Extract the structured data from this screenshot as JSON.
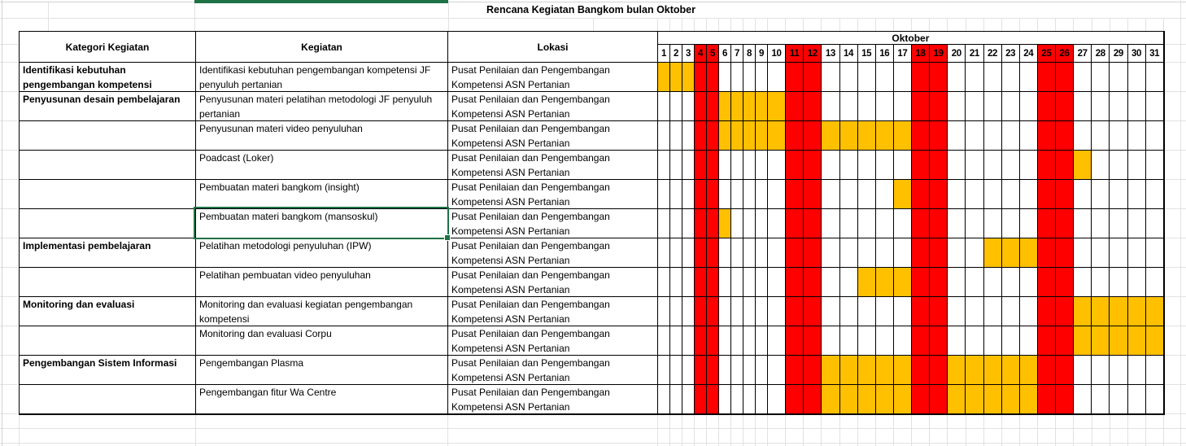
{
  "sheet": {
    "title": "Rencana Kegiatan Bangkom bulan Oktober",
    "month_label": "Oktober",
    "column_headers": {
      "category": "Kategori Kegiatan",
      "activity": "Kegiatan",
      "location": "Lokasi"
    },
    "days": [
      1,
      2,
      3,
      4,
      5,
      6,
      7,
      8,
      9,
      10,
      11,
      12,
      13,
      14,
      15,
      16,
      17,
      18,
      19,
      20,
      21,
      22,
      23,
      24,
      25,
      26,
      27,
      28,
      29,
      30,
      31
    ],
    "weekend_days": [
      4,
      5,
      11,
      12,
      18,
      19,
      25,
      26
    ],
    "rows": [
      {
        "category": "Identifikasi kebutuhan pengembangan kompetensi",
        "activity": "Identifikasi kebutuhan pengembangan kompetensi JF penyuluh pertanian",
        "location": "Pusat Penilaian dan Pengembangan Kompetensi ASN Pertanian",
        "planned_days": [
          1,
          2,
          3
        ]
      },
      {
        "category": "Penyusunan desain pembelajaran",
        "activity": "Penyusunan materi pelatihan metodologi JF penyuluh pertanian",
        "location": "Pusat Penilaian dan Pengembangan Kompetensi ASN Pertanian",
        "planned_days": [
          6,
          7,
          8,
          9,
          10
        ]
      },
      {
        "category": "",
        "activity": "Penyusunan materi video penyuluhan",
        "location": "Pusat Penilaian dan Pengembangan Kompetensi ASN Pertanian",
        "planned_days": [
          6,
          7,
          8,
          9,
          10,
          13,
          14,
          15,
          16,
          17
        ]
      },
      {
        "category": "",
        "activity": "Poadcast (Loker)",
        "location": "Pusat Penilaian dan Pengembangan Kompetensi ASN Pertanian",
        "planned_days": [
          27
        ]
      },
      {
        "category": "",
        "activity": "Pembuatan materi bangkom (insight)",
        "location": "Pusat Penilaian dan Pengembangan Kompetensi ASN Pertanian",
        "planned_days": [
          17
        ]
      },
      {
        "category": "",
        "activity": "Pembuatan materi bangkom (mansoskul)",
        "location": "Pusat Penilaian dan Pengembangan Kompetensi ASN Pertanian",
        "planned_days": [
          6
        ],
        "selected": true
      },
      {
        "category": "Implementasi pembelajaran",
        "activity": "Pelatihan metodologi penyuluhan (IPW)",
        "location": "Pusat Penilaian dan Pengembangan Kompetensi ASN Pertanian",
        "planned_days": [
          22,
          23,
          24
        ]
      },
      {
        "category": "",
        "activity": "Pelatihan pembuatan video penyuluhan",
        "location": "Pusat Penilaian dan Pengembangan Kompetensi ASN Pertanian",
        "planned_days": [
          15,
          16,
          17
        ]
      },
      {
        "category": "Monitoring dan evaluasi",
        "activity": "Monitoring dan evaluasi kegiatan pengembangan kompetensi",
        "location": "Pusat Penilaian dan Pengembangan Kompetensi ASN Pertanian",
        "planned_days": [
          27,
          28,
          29,
          30,
          31
        ]
      },
      {
        "category": "",
        "activity": "Monitoring dan evaluasi Corpu",
        "location": "Pusat Penilaian dan Pengembangan Kompetensi ASN Pertanian",
        "planned_days": [
          27,
          28,
          29,
          30,
          31
        ]
      },
      {
        "category": "Pengembangan Sistem Informasi",
        "activity": "Pengembangan Plasma",
        "location": "Pusat Penilaian dan Pengembangan Kompetensi ASN Pertanian",
        "planned_days": [
          13,
          14,
          15,
          16,
          17,
          20,
          21,
          22,
          23,
          24
        ]
      },
      {
        "category": "",
        "activity": "Pengembangan fitur Wa Centre",
        "location": "Pusat Penilaian dan Pengembangan Kompetensi ASN Pertanian",
        "planned_days": [
          13,
          14,
          15,
          16,
          17,
          20,
          21,
          22,
          23,
          24
        ]
      }
    ],
    "selection": {
      "row_index": 5,
      "column": "activity",
      "cell_text": "Pembuatan materi bangkom (mansoskul)"
    },
    "colors": {
      "planned_fill": "#FFC000",
      "weekend_fill": "#FF0000",
      "selection_green": "#1F7246",
      "table_border": "#000000",
      "gridline": "#E2E2E2"
    }
  }
}
